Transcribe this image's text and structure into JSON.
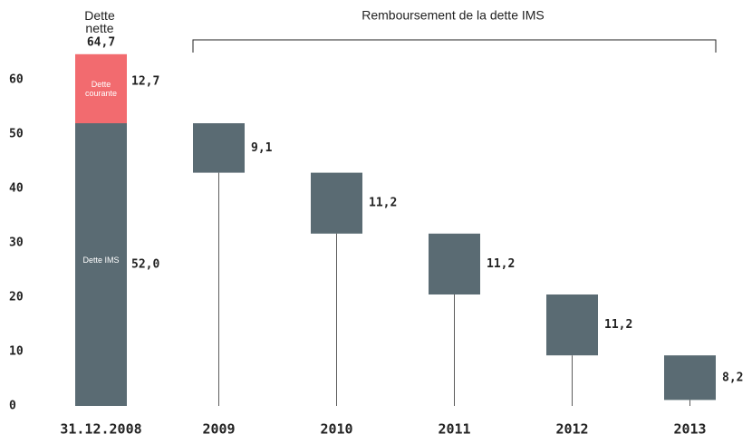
{
  "chart_data": {
    "type": "waterfall",
    "title": "Remboursement de la dette IMS",
    "total_name": "Dette nette",
    "total": {
      "value": 64.7,
      "label": "64,7"
    },
    "categories": [
      "31.12.2008",
      "2009",
      "2010",
      "2011",
      "2012",
      "2013"
    ],
    "series": [
      {
        "name": "Dette IMS",
        "color": "#5a6b73",
        "values": [
          52.0,
          null,
          null,
          null,
          null,
          null
        ],
        "value_labels": [
          "52,0",
          null,
          null,
          null,
          null,
          null
        ]
      },
      {
        "name": "Dette courante",
        "color": "#f26b6f",
        "values": [
          12.7,
          null,
          null,
          null,
          null,
          null
        ],
        "value_labels": [
          "12,7",
          null,
          null,
          null,
          null,
          null
        ]
      }
    ],
    "values": [
      null,
      9.1,
      11.2,
      11.2,
      11.2,
      8.2
    ],
    "value_labels": [
      null,
      "9,1",
      "11,2",
      "11,2",
      "11,2",
      "8,2"
    ],
    "color": "#5a6b73",
    "ylim": [
      0,
      60
    ],
    "yticks": [
      0,
      10,
      20,
      30,
      40,
      50,
      60
    ]
  }
}
